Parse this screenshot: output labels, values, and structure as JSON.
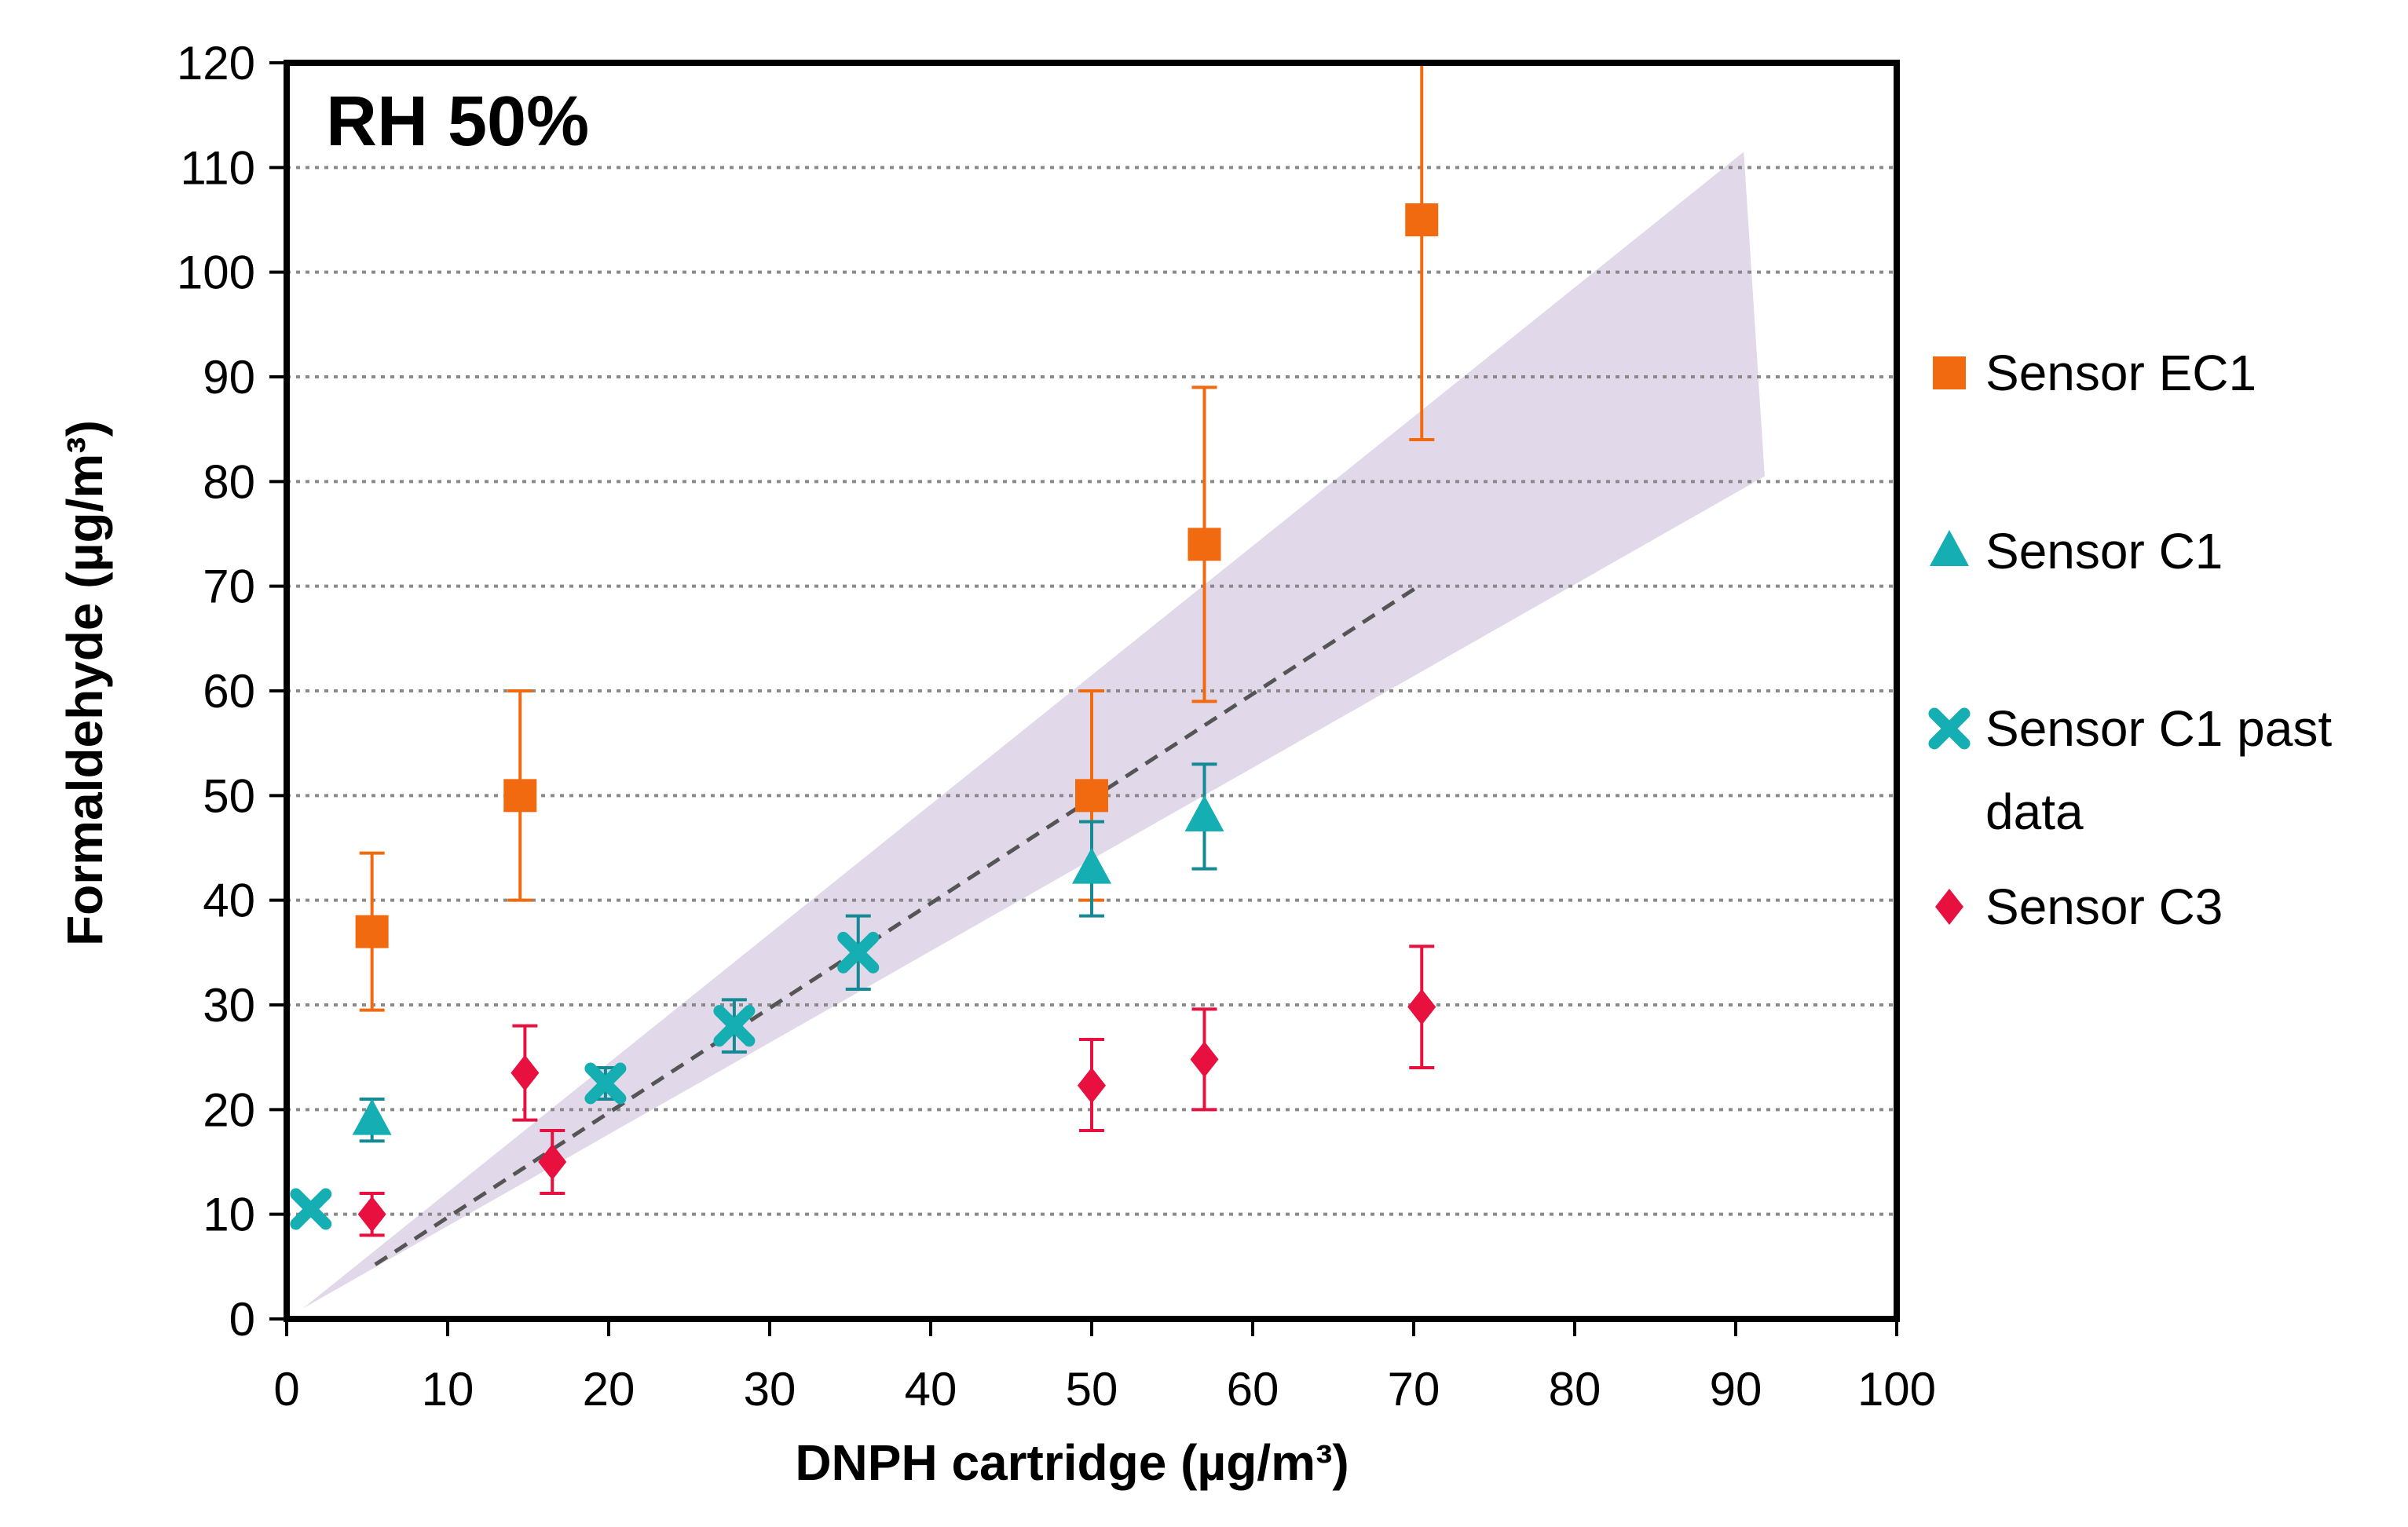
{
  "chart_data": {
    "type": "scatter",
    "annotation": "RH 50%",
    "xlabel": "DNPH cartridge (µg/m³)",
    "ylabel": "Formaldehyde (µg/m³)",
    "xlim": [
      0,
      100
    ],
    "ylim": [
      0,
      120
    ],
    "xticks": [
      0,
      10,
      20,
      30,
      40,
      50,
      60,
      70,
      80,
      90,
      100
    ],
    "yticks": [
      0,
      10,
      20,
      30,
      40,
      50,
      60,
      70,
      80,
      90,
      100,
      110,
      120
    ],
    "grid": "horizontal dotted",
    "legend_position": "right",
    "confidence_band": {
      "color": "#e1d8ea",
      "upper": [
        [
          1,
          1
        ],
        [
          90.5,
          111.5
        ],
        [
          91.8,
          80.5
        ]
      ],
      "lower": [
        [
          1,
          1
        ],
        [
          91.8,
          80.5
        ]
      ]
    },
    "trend_line": {
      "style": "dashed",
      "color": "#555555",
      "x": [
        5.5,
        70.5
      ],
      "y": [
        5.2,
        70.2
      ]
    },
    "series": [
      {
        "name": "Sensor EC1",
        "marker": "square",
        "color": "#f26a10",
        "points": [
          {
            "x": 5.3,
            "y": 37,
            "err_low": 29.5,
            "err_high": 44.5
          },
          {
            "x": 14.5,
            "y": 50,
            "err_low": 40,
            "err_high": 60
          },
          {
            "x": 50,
            "y": 50,
            "err_low": 40,
            "err_high": 60
          },
          {
            "x": 57,
            "y": 74,
            "err_low": 59,
            "err_high": 89
          },
          {
            "x": 70.5,
            "y": 105,
            "err_low": 84,
            "err_high": 120
          }
        ]
      },
      {
        "name": "Sensor C1",
        "marker": "triangle",
        "color": "#15aeb2",
        "points": [
          {
            "x": 5.3,
            "y": 19,
            "err_low": 17,
            "err_high": 21
          },
          {
            "x": 50,
            "y": 43,
            "err_low": 38.5,
            "err_high": 47.5
          },
          {
            "x": 57,
            "y": 48,
            "err_low": 43,
            "err_high": 53
          }
        ]
      },
      {
        "name": "Sensor C1 past data",
        "marker": "cross",
        "color": "#15aeb2",
        "points": [
          {
            "x": 1.5,
            "y": 10.5,
            "err_low": 10.5,
            "err_high": 10.5
          },
          {
            "x": 19.8,
            "y": 22.5,
            "err_low": 21,
            "err_high": 24
          },
          {
            "x": 27.8,
            "y": 28,
            "err_low": 25.5,
            "err_high": 30.5
          },
          {
            "x": 35.5,
            "y": 35,
            "err_low": 31.5,
            "err_high": 38.5
          }
        ]
      },
      {
        "name": "Sensor C3",
        "marker": "diamond",
        "color": "#e8103f",
        "points": [
          {
            "x": 5.3,
            "y": 10,
            "err_low": 8,
            "err_high": 12
          },
          {
            "x": 14.8,
            "y": 23.5,
            "err_low": 19,
            "err_high": 28
          },
          {
            "x": 16.5,
            "y": 15,
            "err_low": 12,
            "err_high": 18
          },
          {
            "x": 50,
            "y": 22.3,
            "err_low": 18,
            "err_high": 26.7
          },
          {
            "x": 57,
            "y": 24.8,
            "err_low": 20,
            "err_high": 29.6
          },
          {
            "x": 70.5,
            "y": 29.8,
            "err_low": 24,
            "err_high": 35.6
          }
        ]
      }
    ],
    "legend": [
      {
        "line1": "Sensor EC1",
        "line2": ""
      },
      {
        "line1": "Sensor C1",
        "line2": ""
      },
      {
        "line1": "Sensor C1 past",
        "line2": "data"
      },
      {
        "line1": "Sensor C3",
        "line2": ""
      }
    ]
  }
}
